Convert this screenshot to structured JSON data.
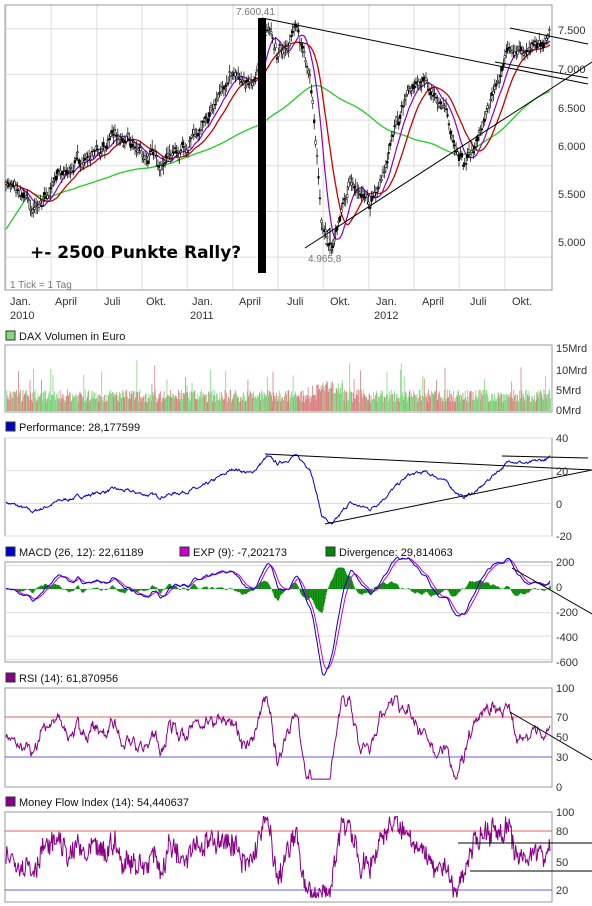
{
  "annotation": "+- 2500 Punkte Rally?",
  "price_panel": {
    "scale_note": "1 Tick = 1 Tag",
    "high_label": "7.600,41",
    "low_label": "4.965,8",
    "ytick_labels": [
      "7.500",
      "7.000",
      "6.500",
      "6.000",
      "5.500",
      "5.000"
    ],
    "x_month_labels": [
      "Jan.",
      "April",
      "Juli",
      "Okt.",
      "Jan.",
      "April",
      "Juli",
      "Okt.",
      "Jan.",
      "April",
      "Juli",
      "Okt."
    ],
    "x_year_labels": [
      "2010",
      "2011",
      "2012"
    ]
  },
  "volume_panel": {
    "title": "DAX Volumen in Euro",
    "ytick_labels": [
      "15Mrd",
      "10Mrd",
      "5Mrd",
      "0Mrd"
    ]
  },
  "performance_panel": {
    "title": "Performance: 28,177599",
    "ytick_labels": [
      "40",
      "20",
      "0",
      "-20"
    ]
  },
  "macd_panel": {
    "title_macd": "MACD (26, 12): 22,61189",
    "title_exp": "EXP (9): -7,202173",
    "title_div": "Divergence: 29,814063",
    "ytick_labels": [
      "200",
      "0",
      "-200",
      "-400",
      "-600"
    ]
  },
  "rsi_panel": {
    "title": "RSI (14): 61,870956",
    "ytick_labels": [
      "100",
      "70",
      "50",
      "30",
      "0"
    ]
  },
  "mfi_panel": {
    "title": "Money Flow Index (14): 54,440637",
    "ytick_labels": [
      "100",
      "80",
      "50",
      "20"
    ]
  },
  "colors": {
    "ma_fast": "#cc0000",
    "ma_mid": "#8800cc",
    "ma_slow": "#22cc22",
    "candles": "#000000",
    "vol_up": "#80d880",
    "vol_down": "#d88080",
    "performance": "#0000cc",
    "macd": "#0000cc",
    "exp": "#cc00cc",
    "divergence": "#008800",
    "rsi": "#880088",
    "level_high": "#e06060",
    "level_low": "#6060e0",
    "grid": "#dddddd"
  },
  "chart_data": [
    {
      "type": "line",
      "title": "DAX",
      "x": [
        "2010-01",
        "2010-03",
        "2010-05",
        "2010-07",
        "2010-09",
        "2010-11",
        "2011-01",
        "2011-03",
        "2011-05",
        "2011-07",
        "2011-08",
        "2011-09",
        "2011-10",
        "2011-11",
        "2012-01",
        "2012-03",
        "2012-04",
        "2012-05",
        "2012-06",
        "2012-07",
        "2012-08",
        "2012-09",
        "2012-10",
        "2012-11",
        "2012-12"
      ],
      "series": [
        {
          "name": "",
          "values": [
            5850,
            5700,
            6050,
            6000,
            6250,
            6900,
            7050,
            6850,
            7450,
            7500,
            6800,
            5200,
            5100,
            5800,
            6100,
            6900,
            6700,
            6300,
            6100,
            6400,
            6800,
            7200,
            7350,
            7250,
            7400
          ]
        }
      ],
      "annotations": [
        "7.600,41",
        "4.965,8",
        "+- 2500 Punkte Rally?"
      ],
      "ylim": [
        4600,
        7700
      ]
    },
    {
      "type": "bar",
      "title": "DAX Volumen in Euro",
      "ylim": [
        0,
        15
      ]
    },
    {
      "type": "line",
      "title": "Performance: 28,177599",
      "ylim": [
        -20,
        40
      ],
      "x": [
        "2010-01",
        "2010-06",
        "2011-01",
        "2011-07",
        "2011-09",
        "2012-01",
        "2012-06",
        "2012-12"
      ],
      "series": [
        {
          "name": "",
          "values": [
            0,
            5,
            20,
            34,
            -8,
            10,
            16,
            30
          ]
        }
      ]
    },
    {
      "type": "line",
      "title": "MACD (26, 12): 22,61189",
      "ylim": [
        -600,
        200
      ]
    },
    {
      "type": "line",
      "title": "RSI (14): 61,870956",
      "ylim": [
        0,
        100
      ]
    },
    {
      "type": "line",
      "title": "Money Flow Index (14): 54,440637",
      "ylim": [
        0,
        100
      ]
    }
  ]
}
